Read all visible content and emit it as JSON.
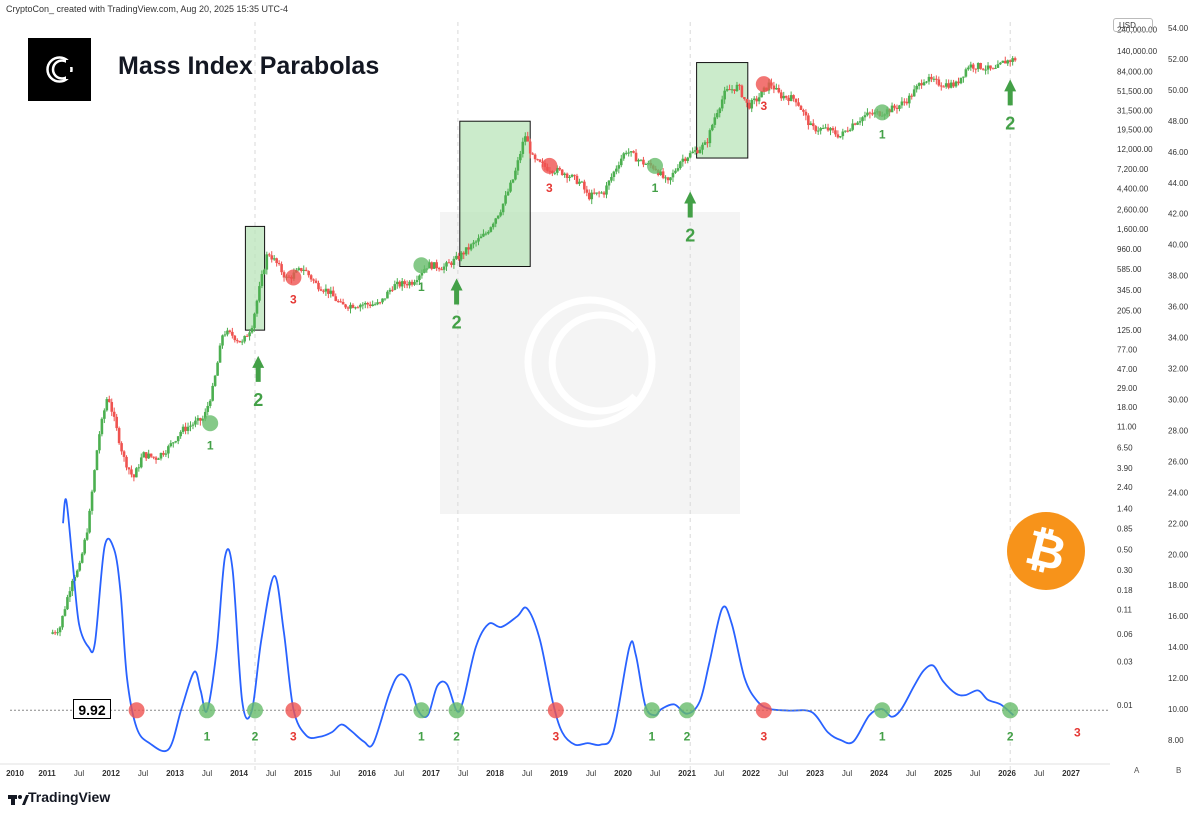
{
  "header": {
    "credit": "CryptoCon_ created with TradingView.com, Aug 20, 2025 15:35 UTC-4",
    "title": "Mass Index Parabolas",
    "currency": "USD",
    "brand": "TradingView",
    "scale_buttons": [
      "A",
      "B"
    ]
  },
  "colors": {
    "up": "#26a69a",
    "up_candle": "#4caf50",
    "down": "#ef5350",
    "mass_index_line": "#2962ff",
    "marker_green": "#66bb6a",
    "marker_red": "#ef5350",
    "label_green": "#43a047",
    "label_red": "#e53935",
    "box_fill": "#b9e4b9",
    "bitcoin_orange": "#f7931a"
  },
  "icons": [
    "cryptocon-logo-icon",
    "bitcoin-icon",
    "tradingview-logo-icon",
    "cryptocon-watermark-icon"
  ],
  "chart_data": {
    "type": "line",
    "x_axis": {
      "ticks": [
        "2010",
        "2011",
        "Jul",
        "2012",
        "Jul",
        "2013",
        "Jul",
        "2014",
        "Jul",
        "2015",
        "Jul",
        "2016",
        "Jul",
        "2017",
        "Jul",
        "2018",
        "Jul",
        "2019",
        "Jul",
        "2020",
        "Jul",
        "2021",
        "Jul",
        "2022",
        "Jul",
        "2023",
        "Jul",
        "2024",
        "Jul",
        "2025",
        "Jul",
        "2026",
        "Jul",
        "2027"
      ],
      "range": [
        2010.0,
        2027.0
      ]
    },
    "price_axis": {
      "scale": "log",
      "ticks": [
        "240,000.00",
        "140,000.00",
        "84,000.00",
        "51,500.00",
        "31,500.00",
        "19,500.00",
        "12,000.00",
        "7,200.00",
        "4,400.00",
        "2,600.00",
        "1,600.00",
        "960.00",
        "585.00",
        "345.00",
        "205.00",
        "125.00",
        "77.00",
        "47.00",
        "29.00",
        "18.00",
        "11.00",
        "6.50",
        "3.90",
        "2.40",
        "1.40",
        "0.85",
        "0.50",
        "0.30",
        "0.18",
        "0.11",
        "0.06",
        "0.03",
        "0.01"
      ]
    },
    "mass_index_axis": {
      "ticks": [
        "54.00",
        "52.00",
        "50.00",
        "48.00",
        "46.00",
        "44.00",
        "42.00",
        "40.00",
        "38.00",
        "36.00",
        "34.00",
        "32.00",
        "30.00",
        "28.00",
        "26.00",
        "24.00",
        "22.00",
        "20.00",
        "18.00",
        "16.00",
        "14.00",
        "12.00",
        "10.00",
        "8.00"
      ],
      "range": [
        7.0,
        55.0
      ],
      "current_value": "9.92",
      "threshold": 9.92
    },
    "series": [
      {
        "name": "BTC price (approx.)",
        "points": [
          [
            2010.55,
            0.06
          ],
          [
            2010.7,
            0.07
          ],
          [
            2010.9,
            0.25
          ],
          [
            2011.0,
            0.3
          ],
          [
            2011.15,
            1.0
          ],
          [
            2011.3,
            8.0
          ],
          [
            2011.45,
            25.0
          ],
          [
            2011.55,
            13.0
          ],
          [
            2011.7,
            5.0
          ],
          [
            2011.85,
            3.0
          ],
          [
            2012.0,
            5.5
          ],
          [
            2012.2,
            5.0
          ],
          [
            2012.4,
            6.5
          ],
          [
            2012.6,
            10.0
          ],
          [
            2012.8,
            12.0
          ],
          [
            2012.95,
            13.5
          ],
          [
            2013.1,
            30.0
          ],
          [
            2013.25,
            120.0
          ],
          [
            2013.4,
            110.0
          ],
          [
            2013.55,
            90.0
          ],
          [
            2013.7,
            140.0
          ],
          [
            2013.85,
            450.0
          ],
          [
            2013.95,
            900.0
          ],
          [
            2014.1,
            650.0
          ],
          [
            2014.25,
            450.0
          ],
          [
            2014.5,
            600.0
          ],
          [
            2014.7,
            400.0
          ],
          [
            2014.9,
            330.0
          ],
          [
            2015.1,
            230.0
          ],
          [
            2015.4,
            240.0
          ],
          [
            2015.7,
            240.0
          ],
          [
            2015.9,
            380.0
          ],
          [
            2016.2,
            420.0
          ],
          [
            2016.45,
            650.0
          ],
          [
            2016.7,
            610.0
          ],
          [
            2016.9,
            750.0
          ],
          [
            2017.1,
            1000.0
          ],
          [
            2017.35,
            1400.0
          ],
          [
            2017.6,
            2700.0
          ],
          [
            2017.8,
            6000.0
          ],
          [
            2017.97,
            17000.0
          ],
          [
            2018.1,
            9000.0
          ],
          [
            2018.3,
            7500.0
          ],
          [
            2018.6,
            6500.0
          ],
          [
            2018.85,
            5000.0
          ],
          [
            2018.95,
            3600.0
          ],
          [
            2019.2,
            4000.0
          ],
          [
            2019.45,
            9000.0
          ],
          [
            2019.55,
            11500.0
          ],
          [
            2019.8,
            8500.0
          ],
          [
            2020.0,
            7500.0
          ],
          [
            2020.2,
            5000.0
          ],
          [
            2020.4,
            9000.0
          ],
          [
            2020.6,
            11000.0
          ],
          [
            2020.8,
            13500.0
          ],
          [
            2020.95,
            29000.0
          ],
          [
            2021.1,
            50000.0
          ],
          [
            2021.3,
            58000.0
          ],
          [
            2021.45,
            35000.0
          ],
          [
            2021.6,
            42000.0
          ],
          [
            2021.8,
            63000.0
          ],
          [
            2021.95,
            46000.0
          ],
          [
            2022.2,
            42000.0
          ],
          [
            2022.45,
            20000.0
          ],
          [
            2022.7,
            19500.0
          ],
          [
            2022.9,
            16500.0
          ],
          [
            2023.1,
            23000.0
          ],
          [
            2023.3,
            28000.0
          ],
          [
            2023.55,
            30000.0
          ],
          [
            2023.8,
            35000.0
          ],
          [
            2023.97,
            43000.0
          ],
          [
            2024.2,
            70000.0
          ],
          [
            2024.45,
            62000.0
          ],
          [
            2024.7,
            60000.0
          ],
          [
            2024.9,
            98000.0
          ],
          [
            2025.1,
            95000.0
          ],
          [
            2025.3,
            85000.0
          ],
          [
            2025.45,
            107000.0
          ],
          [
            2025.63,
            115000.0
          ]
        ]
      },
      {
        "name": "Mass Index",
        "points": [
          [
            2010.75,
            22.0
          ],
          [
            2010.8,
            23.5
          ],
          [
            2010.9,
            19.5
          ],
          [
            2011.0,
            15.5
          ],
          [
            2011.15,
            14.0
          ],
          [
            2011.25,
            14.3
          ],
          [
            2011.4,
            20.5
          ],
          [
            2011.55,
            20.3
          ],
          [
            2011.65,
            17.5
          ],
          [
            2011.75,
            12.0
          ],
          [
            2011.9,
            8.8
          ],
          [
            2012.1,
            7.8
          ],
          [
            2012.4,
            7.4
          ],
          [
            2012.6,
            10.0
          ],
          [
            2012.8,
            12.4
          ],
          [
            2012.9,
            11.2
          ],
          [
            2013.0,
            9.9
          ],
          [
            2013.15,
            13.8
          ],
          [
            2013.28,
            19.8
          ],
          [
            2013.4,
            19.0
          ],
          [
            2013.55,
            10.5
          ],
          [
            2013.7,
            9.9
          ],
          [
            2013.85,
            14.5
          ],
          [
            2014.05,
            18.6
          ],
          [
            2014.2,
            15.0
          ],
          [
            2014.35,
            10.0
          ],
          [
            2014.55,
            8.3
          ],
          [
            2014.75,
            8.2
          ],
          [
            2014.95,
            8.5
          ],
          [
            2015.1,
            9.0
          ],
          [
            2015.25,
            8.6
          ],
          [
            2015.45,
            7.9
          ],
          [
            2015.6,
            7.8
          ],
          [
            2015.85,
            11.0
          ],
          [
            2016.0,
            12.2
          ],
          [
            2016.15,
            11.8
          ],
          [
            2016.3,
            9.9
          ],
          [
            2016.45,
            9.6
          ],
          [
            2016.6,
            11.5
          ],
          [
            2016.75,
            11.6
          ],
          [
            2016.9,
            9.9
          ],
          [
            2017.0,
            10.5
          ],
          [
            2017.2,
            14.0
          ],
          [
            2017.4,
            15.5
          ],
          [
            2017.6,
            15.3
          ],
          [
            2017.85,
            16.0
          ],
          [
            2018.0,
            16.5
          ],
          [
            2018.2,
            14.5
          ],
          [
            2018.4,
            10.5
          ],
          [
            2018.55,
            8.5
          ],
          [
            2018.75,
            7.7
          ],
          [
            2018.95,
            7.8
          ],
          [
            2019.15,
            7.7
          ],
          [
            2019.35,
            8.5
          ],
          [
            2019.6,
            14.0
          ],
          [
            2019.7,
            13.5
          ],
          [
            2019.85,
            10.2
          ],
          [
            2020.0,
            9.6
          ],
          [
            2020.1,
            10.0
          ],
          [
            2020.3,
            10.3
          ],
          [
            2020.5,
            9.7
          ],
          [
            2020.7,
            10.5
          ],
          [
            2020.85,
            13.0
          ],
          [
            2021.05,
            16.5
          ],
          [
            2021.2,
            15.5
          ],
          [
            2021.4,
            12.0
          ],
          [
            2021.6,
            10.5
          ],
          [
            2021.8,
            10.0
          ],
          [
            2022.1,
            9.9
          ],
          [
            2022.45,
            9.8
          ],
          [
            2022.7,
            8.5
          ],
          [
            2022.9,
            8.0
          ],
          [
            2023.1,
            7.9
          ],
          [
            2023.35,
            9.6
          ],
          [
            2023.55,
            10.0
          ],
          [
            2023.7,
            9.5
          ],
          [
            2023.85,
            10.0
          ],
          [
            2024.05,
            11.5
          ],
          [
            2024.2,
            12.5
          ],
          [
            2024.35,
            12.8
          ],
          [
            2024.5,
            11.8
          ],
          [
            2024.7,
            11.0
          ],
          [
            2024.85,
            10.9
          ],
          [
            2025.05,
            11.2
          ],
          [
            2025.2,
            10.6
          ],
          [
            2025.4,
            10.3
          ],
          [
            2025.6,
            9.6
          ]
        ]
      }
    ],
    "threshold_markers": [
      {
        "x": 2011.9,
        "phase": "3",
        "color": "red",
        "labeled": false
      },
      {
        "x": 2013.0,
        "phase": "1",
        "color": "green",
        "labeled": true
      },
      {
        "x": 2013.75,
        "phase": "2",
        "color": "green",
        "labeled": true
      },
      {
        "x": 2014.35,
        "phase": "3",
        "color": "red",
        "labeled": true
      },
      {
        "x": 2016.35,
        "phase": "1",
        "color": "green",
        "labeled": true
      },
      {
        "x": 2016.9,
        "phase": "2",
        "color": "green",
        "labeled": true
      },
      {
        "x": 2018.45,
        "phase": "3",
        "color": "red",
        "labeled": true
      },
      {
        "x": 2019.95,
        "phase": "1",
        "color": "green",
        "labeled": true
      },
      {
        "x": 2020.5,
        "phase": "2",
        "color": "green",
        "labeled": true
      },
      {
        "x": 2021.7,
        "phase": "3",
        "color": "red",
        "labeled": true
      },
      {
        "x": 2023.55,
        "phase": "1",
        "color": "green",
        "labeled": true
      },
      {
        "x": 2025.55,
        "phase": "2",
        "color": "green",
        "labeled": true
      }
    ],
    "extra_labels": [
      {
        "x": 2026.6,
        "text": "3",
        "color": "red"
      }
    ],
    "price_markers": [
      {
        "x": 2013.05,
        "price": 12.0,
        "phase": "1",
        "color": "green"
      },
      {
        "x": 2014.35,
        "price": 470.0,
        "phase": "3",
        "color": "red"
      },
      {
        "x": 2016.35,
        "price": 640.0,
        "phase": "1",
        "color": "green"
      },
      {
        "x": 2018.35,
        "price": 7800.0,
        "phase": "3",
        "color": "red"
      },
      {
        "x": 2020.0,
        "price": 7800.0,
        "phase": "1",
        "color": "green"
      },
      {
        "x": 2021.7,
        "price": 61000.0,
        "phase": "3",
        "color": "red"
      },
      {
        "x": 2023.55,
        "price": 30000.0,
        "phase": "1",
        "color": "green"
      }
    ],
    "price_arrows": [
      {
        "x": 2013.8,
        "price_tip": 80.0,
        "label": "2"
      },
      {
        "x": 2016.9,
        "price_tip": 560.0,
        "label": "2"
      },
      {
        "x": 2020.55,
        "price_tip": 5000.0,
        "label": "2"
      },
      {
        "x": 2025.55,
        "price_tip": 84000.0,
        "label": "2"
      }
    ],
    "parabola_boxes": [
      {
        "x_start": 2013.6,
        "x_end": 2013.9,
        "price_low": 125.0,
        "price_high": 1700.0
      },
      {
        "x_start": 2016.95,
        "x_end": 2018.05,
        "price_low": 620.0,
        "price_high": 24000.0
      },
      {
        "x_start": 2020.65,
        "x_end": 2021.45,
        "price_low": 9500.0,
        "price_high": 105000.0
      }
    ],
    "grid": false,
    "legend": "none"
  }
}
